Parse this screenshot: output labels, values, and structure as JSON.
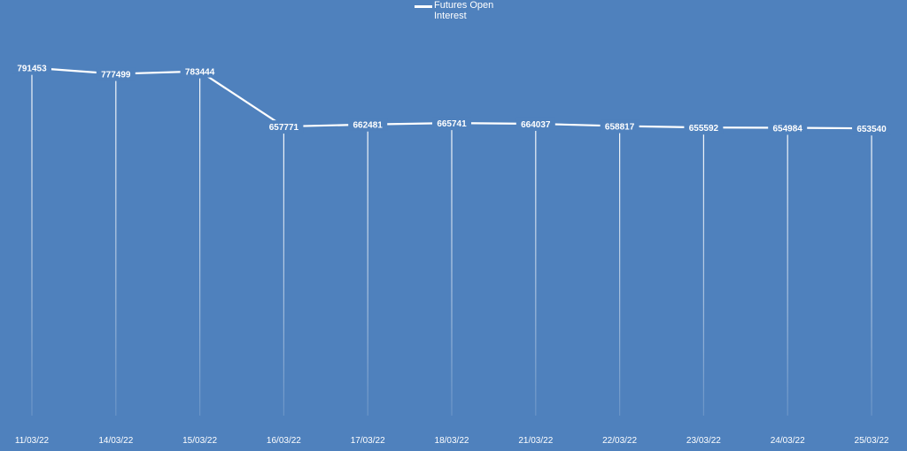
{
  "chart_data": {
    "type": "line",
    "title": "",
    "xlabel": "",
    "ylabel": "",
    "categories": [
      "11/03/22",
      "14/03/22",
      "15/03/22",
      "16/03/22",
      "17/03/22",
      "18/03/22",
      "21/03/22",
      "22/03/22",
      "23/03/22",
      "24/03/22",
      "25/03/22"
    ],
    "series": [
      {
        "name": "Futures Open Interest",
        "values": [
          791453,
          777499,
          783444,
          657771,
          662481,
          665741,
          664037,
          658817,
          655592,
          654984,
          653540
        ]
      }
    ],
    "ylim": [
      0,
      1003500
    ],
    "grid": false,
    "data_labels": true,
    "drop_lines": true,
    "legend_position": "top",
    "colors": {
      "background": "#4f81bd",
      "line": "#ffffff",
      "drop_line": "#ffffff",
      "text": "#ffffff"
    }
  }
}
